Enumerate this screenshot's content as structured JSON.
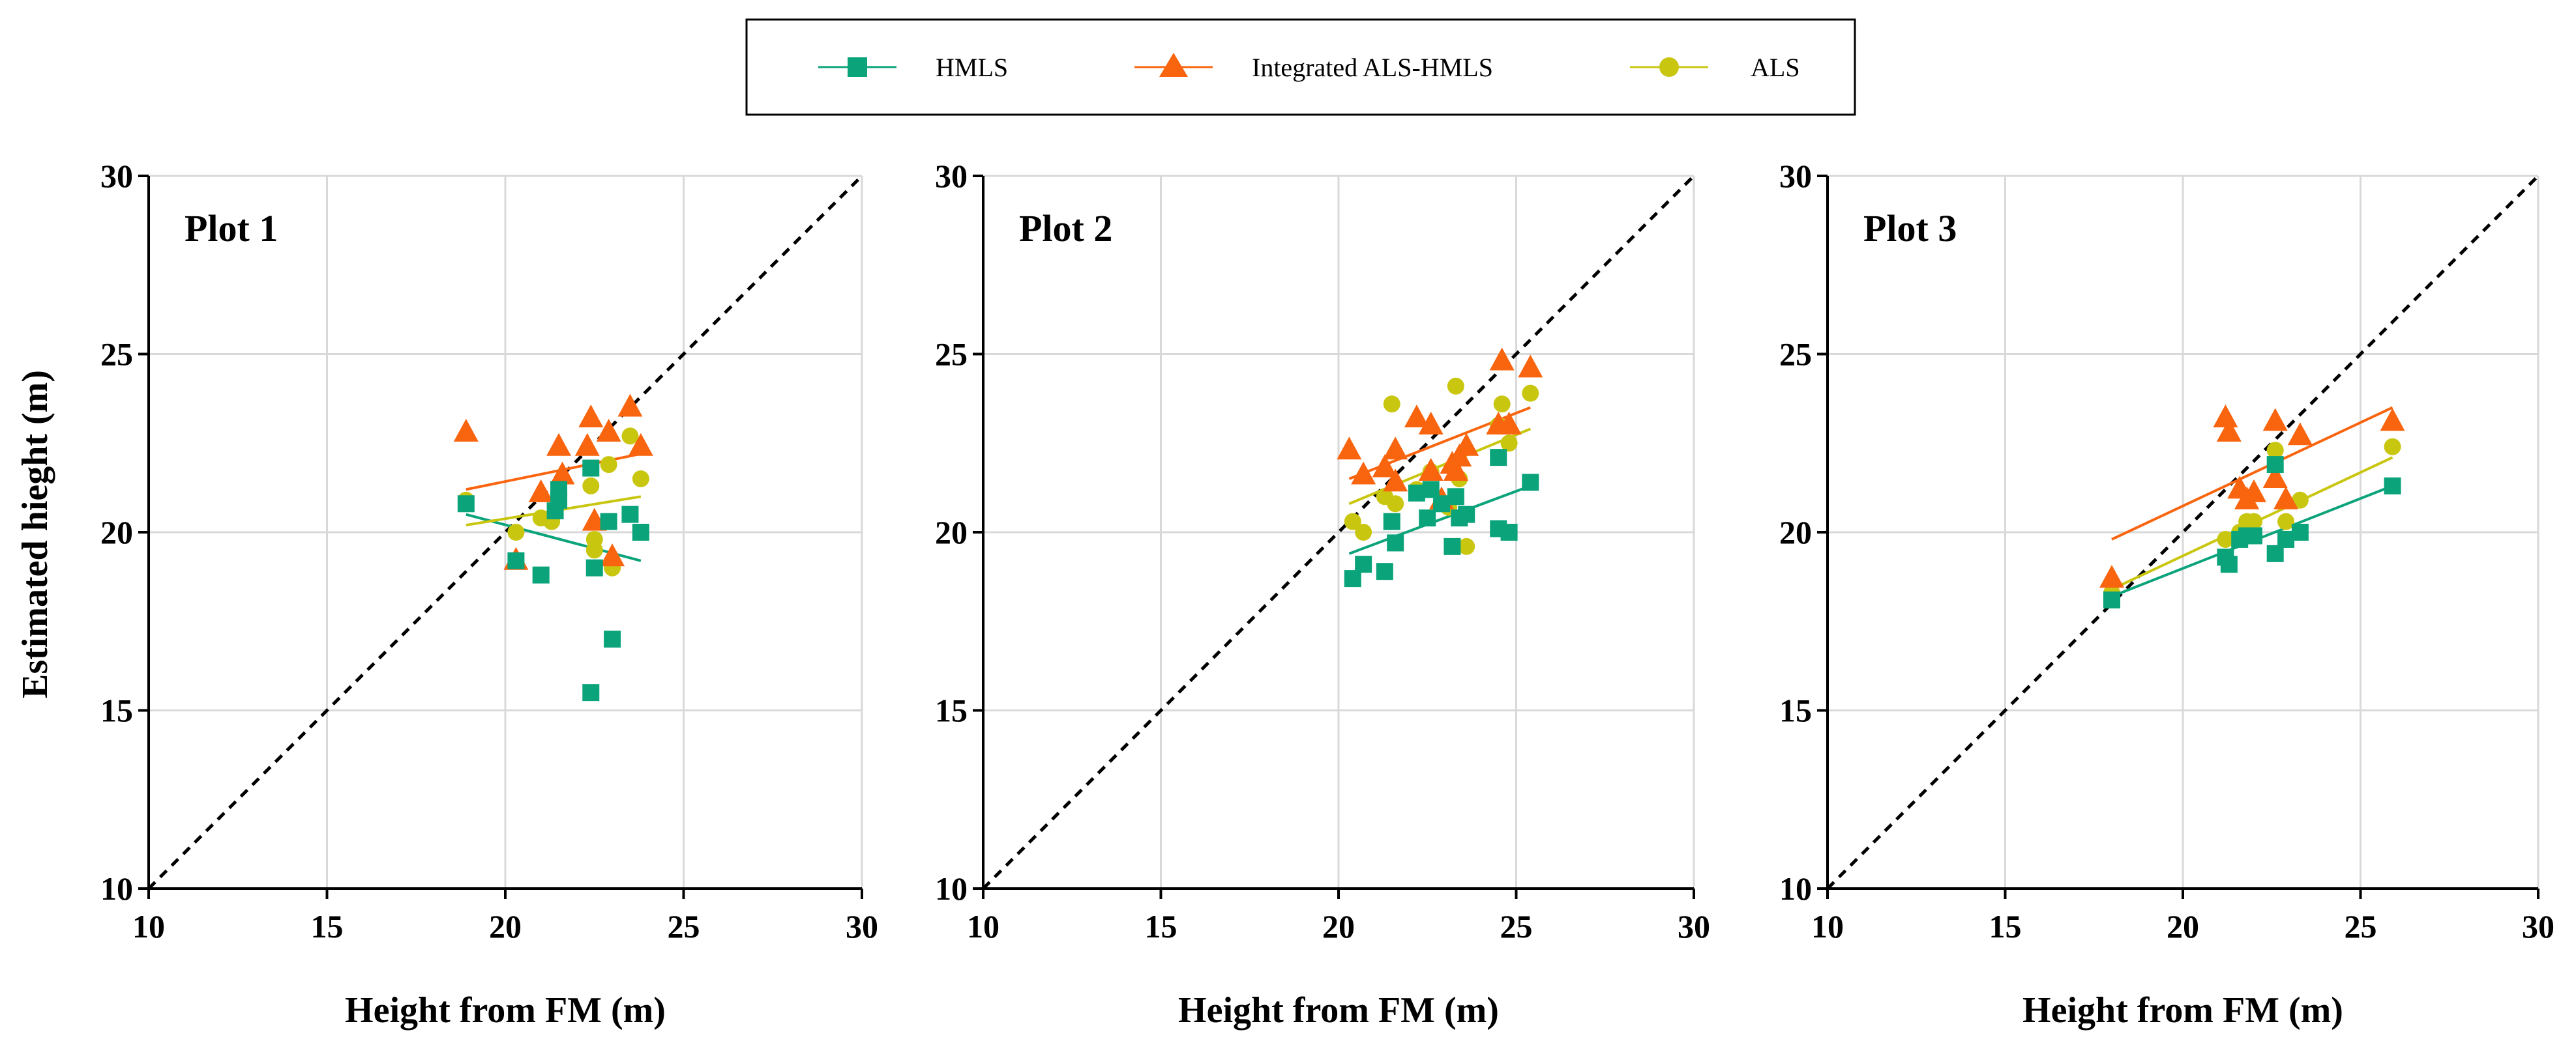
{
  "legend": [
    {
      "name": "HMLS",
      "color": "#0aa37a",
      "marker": "square"
    },
    {
      "name": "Integrated ALS-HMLS",
      "color": "#f9640e",
      "marker": "triangle"
    },
    {
      "name": "ALS",
      "color": "#c9c610",
      "marker": "circle"
    }
  ],
  "shared_ylabel": "Estimated hieght (m)",
  "chart_data": [
    {
      "type": "scatter",
      "title": "Plot 1",
      "xlabel": "Height from FM (m)",
      "ylabel": "Estimated hieght (m)",
      "xlim": [
        10,
        30
      ],
      "ylim": [
        10,
        30
      ],
      "xticks": [
        10,
        15,
        20,
        25,
        30
      ],
      "yticks": [
        10,
        15,
        20,
        25,
        30
      ],
      "grid": true,
      "reference_line": {
        "style": "dashed",
        "from": [
          10,
          10
        ],
        "to": [
          30,
          30
        ]
      },
      "series": [
        {
          "name": "HMLS",
          "points": [
            [
              18.9,
              20.8
            ],
            [
              20.3,
              19.2
            ],
            [
              21.0,
              18.8
            ],
            [
              21.4,
              20.6
            ],
            [
              21.5,
              21.2
            ],
            [
              21.5,
              20.9
            ],
            [
              22.4,
              21.8
            ],
            [
              22.4,
              15.5
            ],
            [
              22.5,
              19.0
            ],
            [
              22.9,
              20.3
            ],
            [
              23.0,
              17.0
            ],
            [
              23.5,
              20.5
            ],
            [
              23.8,
              20.0
            ]
          ],
          "fit": [
            [
              18.9,
              20.5
            ],
            [
              23.8,
              19.2
            ]
          ]
        },
        {
          "name": "Integrated ALS-HMLS",
          "points": [
            [
              18.9,
              22.8
            ],
            [
              20.3,
              19.2
            ],
            [
              21.0,
              21.1
            ],
            [
              21.5,
              22.4
            ],
            [
              21.6,
              21.6
            ],
            [
              22.3,
              22.4
            ],
            [
              22.4,
              23.2
            ],
            [
              22.5,
              20.3
            ],
            [
              22.9,
              22.8
            ],
            [
              23.0,
              19.3
            ],
            [
              23.5,
              23.5
            ],
            [
              23.8,
              22.4
            ]
          ],
          "fit": [
            [
              18.9,
              21.2
            ],
            [
              23.8,
              22.2
            ]
          ]
        },
        {
          "name": "ALS",
          "points": [
            [
              18.9,
              20.9
            ],
            [
              20.3,
              20.0
            ],
            [
              21.0,
              20.4
            ],
            [
              21.3,
              20.3
            ],
            [
              21.5,
              21.0
            ],
            [
              22.4,
              21.3
            ],
            [
              22.5,
              19.8
            ],
            [
              22.5,
              19.5
            ],
            [
              22.9,
              21.9
            ],
            [
              23.0,
              19.0
            ],
            [
              23.5,
              22.7
            ],
            [
              23.8,
              21.5
            ]
          ],
          "fit": [
            [
              18.9,
              20.2
            ],
            [
              23.8,
              21.0
            ]
          ]
        }
      ]
    },
    {
      "type": "scatter",
      "title": "Plot 2",
      "xlabel": "Height from FM (m)",
      "ylabel": "",
      "xlim": [
        10,
        30
      ],
      "ylim": [
        10,
        30
      ],
      "xticks": [
        10,
        15,
        20,
        25,
        30
      ],
      "yticks": [
        10,
        15,
        20,
        25,
        30
      ],
      "grid": true,
      "reference_line": {
        "style": "dashed",
        "from": [
          10,
          10
        ],
        "to": [
          30,
          30
        ]
      },
      "series": [
        {
          "name": "HMLS",
          "points": [
            [
              20.4,
              18.7
            ],
            [
              20.7,
              19.1
            ],
            [
              21.3,
              18.9
            ],
            [
              21.6,
              19.7
            ],
            [
              21.5,
              20.3
            ],
            [
              22.2,
              21.1
            ],
            [
              22.5,
              20.4
            ],
            [
              22.6,
              21.2
            ],
            [
              22.9,
              20.8
            ],
            [
              23.2,
              19.6
            ],
            [
              23.3,
              21.0
            ],
            [
              23.4,
              20.4
            ],
            [
              23.6,
              20.5
            ],
            [
              24.5,
              22.1
            ],
            [
              24.5,
              20.1
            ],
            [
              24.8,
              20.0
            ],
            [
              25.4,
              21.4
            ]
          ],
          "fit": [
            [
              20.3,
              19.4
            ],
            [
              25.4,
              21.3
            ]
          ]
        },
        {
          "name": "Integrated ALS-HMLS",
          "points": [
            [
              20.3,
              22.3
            ],
            [
              20.7,
              21.6
            ],
            [
              21.3,
              21.8
            ],
            [
              21.6,
              21.4
            ],
            [
              21.6,
              22.3
            ],
            [
              22.2,
              23.2
            ],
            [
              22.6,
              21.7
            ],
            [
              22.6,
              23.0
            ],
            [
              22.9,
              20.9
            ],
            [
              23.2,
              21.9
            ],
            [
              23.3,
              21.7
            ],
            [
              23.4,
              22.1
            ],
            [
              23.6,
              22.4
            ],
            [
              24.5,
              23.0
            ],
            [
              24.6,
              24.8
            ],
            [
              24.8,
              23.0
            ],
            [
              25.4,
              24.6
            ]
          ],
          "fit": [
            [
              20.3,
              21.5
            ],
            [
              25.4,
              23.5
            ]
          ]
        },
        {
          "name": "ALS",
          "points": [
            [
              20.4,
              20.3
            ],
            [
              20.7,
              20.0
            ],
            [
              21.3,
              21.0
            ],
            [
              21.5,
              23.6
            ],
            [
              21.6,
              20.8
            ],
            [
              22.2,
              21.2
            ],
            [
              22.6,
              21.7
            ],
            [
              23.1,
              20.7
            ],
            [
              23.3,
              24.1
            ],
            [
              23.4,
              21.5
            ],
            [
              23.6,
              19.6
            ],
            [
              24.5,
              23.0
            ],
            [
              24.6,
              23.6
            ],
            [
              24.8,
              22.5
            ],
            [
              25.4,
              23.9
            ]
          ],
          "fit": [
            [
              20.3,
              20.8
            ],
            [
              25.4,
              22.9
            ]
          ]
        }
      ]
    },
    {
      "type": "scatter",
      "title": "Plot 3",
      "xlabel": "Height from FM (m)",
      "ylabel": "",
      "xlim": [
        10,
        30
      ],
      "ylim": [
        10,
        30
      ],
      "xticks": [
        10,
        15,
        20,
        25,
        30
      ],
      "yticks": [
        10,
        15,
        20,
        25,
        30
      ],
      "grid": true,
      "reference_line": {
        "style": "dashed",
        "from": [
          10,
          10
        ],
        "to": [
          30,
          30
        ]
      },
      "series": [
        {
          "name": "HMLS",
          "points": [
            [
              18.0,
              18.1
            ],
            [
              21.2,
              19.3
            ],
            [
              21.3,
              19.1
            ],
            [
              21.6,
              19.8
            ],
            [
              21.8,
              19.9
            ],
            [
              22.0,
              19.9
            ],
            [
              22.6,
              19.4
            ],
            [
              22.6,
              21.9
            ],
            [
              22.9,
              19.8
            ],
            [
              23.3,
              20.0
            ],
            [
              25.9,
              21.3
            ]
          ],
          "fit": [
            [
              18.0,
              18.2
            ],
            [
              25.9,
              21.3
            ]
          ]
        },
        {
          "name": "Integrated ALS-HMLS",
          "points": [
            [
              18.0,
              18.7
            ],
            [
              21.2,
              23.2
            ],
            [
              21.3,
              22.8
            ],
            [
              21.6,
              21.2
            ],
            [
              21.8,
              20.9
            ],
            [
              22.0,
              21.1
            ],
            [
              22.6,
              21.5
            ],
            [
              22.6,
              23.1
            ],
            [
              22.9,
              20.9
            ],
            [
              23.3,
              22.7
            ],
            [
              25.9,
              23.1
            ]
          ],
          "fit": [
            [
              18.0,
              19.8
            ],
            [
              25.9,
              23.5
            ]
          ]
        },
        {
          "name": "ALS",
          "points": [
            [
              18.0,
              18.3
            ],
            [
              21.2,
              19.8
            ],
            [
              21.6,
              20.0
            ],
            [
              21.8,
              20.3
            ],
            [
              22.0,
              20.3
            ],
            [
              22.6,
              22.3
            ],
            [
              22.9,
              20.3
            ],
            [
              23.3,
              20.9
            ],
            [
              25.9,
              22.4
            ]
          ],
          "fit": [
            [
              18.0,
              18.4
            ],
            [
              25.9,
              22.1
            ]
          ]
        }
      ]
    }
  ]
}
